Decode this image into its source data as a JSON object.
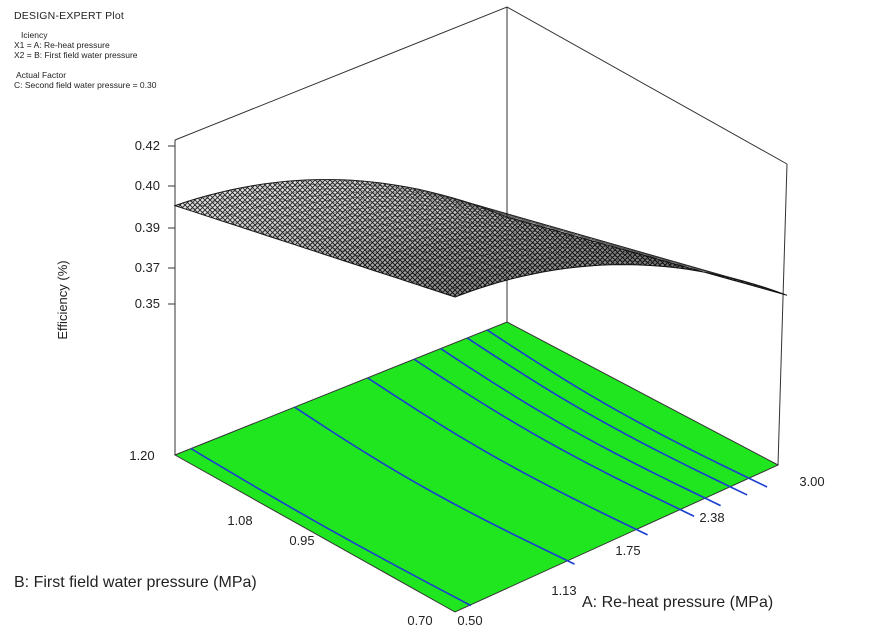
{
  "header": {
    "title": "DESIGN-EXPERT Plot",
    "response_label": "Iciency",
    "x1_label": "X1 = A: Re-heat pressure",
    "x2_label": "X2 = B: First field water pressure",
    "actual_factor_label": "Actual Factor",
    "actual_factor_value": "C: Second field water pressure = 0.30"
  },
  "colors": {
    "floor": "#1fe61f",
    "contour": "#1b3fd1",
    "surface_dark": "#2a2a2a",
    "surface_light": "#d8d8d8",
    "frame": "#333333"
  },
  "chart_data": {
    "type": "surface",
    "title": "",
    "zlabel": "Efficiency (%)",
    "xlabel": "A: Re-heat pressure (MPa)",
    "ylabel": "B: First field water pressure (MPa)",
    "x_ticks": [
      "0.50",
      "1.13",
      "1.75",
      "2.38",
      "3.00"
    ],
    "y_ticks": [
      "0.70",
      "0.95",
      "1.08",
      "1.20"
    ],
    "z_ticks": [
      "0.35",
      "0.37",
      "0.39",
      "0.40",
      "0.42"
    ],
    "xlim": [
      0.5,
      3.0
    ],
    "ylim": [
      0.7,
      1.2
    ],
    "zlim": [
      0.3,
      0.42
    ],
    "corners": [
      {
        "A": 0.5,
        "B": 0.7,
        "efficiency": 0.42
      },
      {
        "A": 0.5,
        "B": 1.2,
        "efficiency": 0.395
      },
      {
        "A": 3.0,
        "B": 0.7,
        "efficiency": 0.37
      },
      {
        "A": 3.0,
        "B": 1.2,
        "efficiency": 0.34
      }
    ],
    "contour_A_positions": [
      0.62,
      1.4,
      1.95,
      2.3,
      2.5,
      2.7,
      2.85
    ]
  }
}
